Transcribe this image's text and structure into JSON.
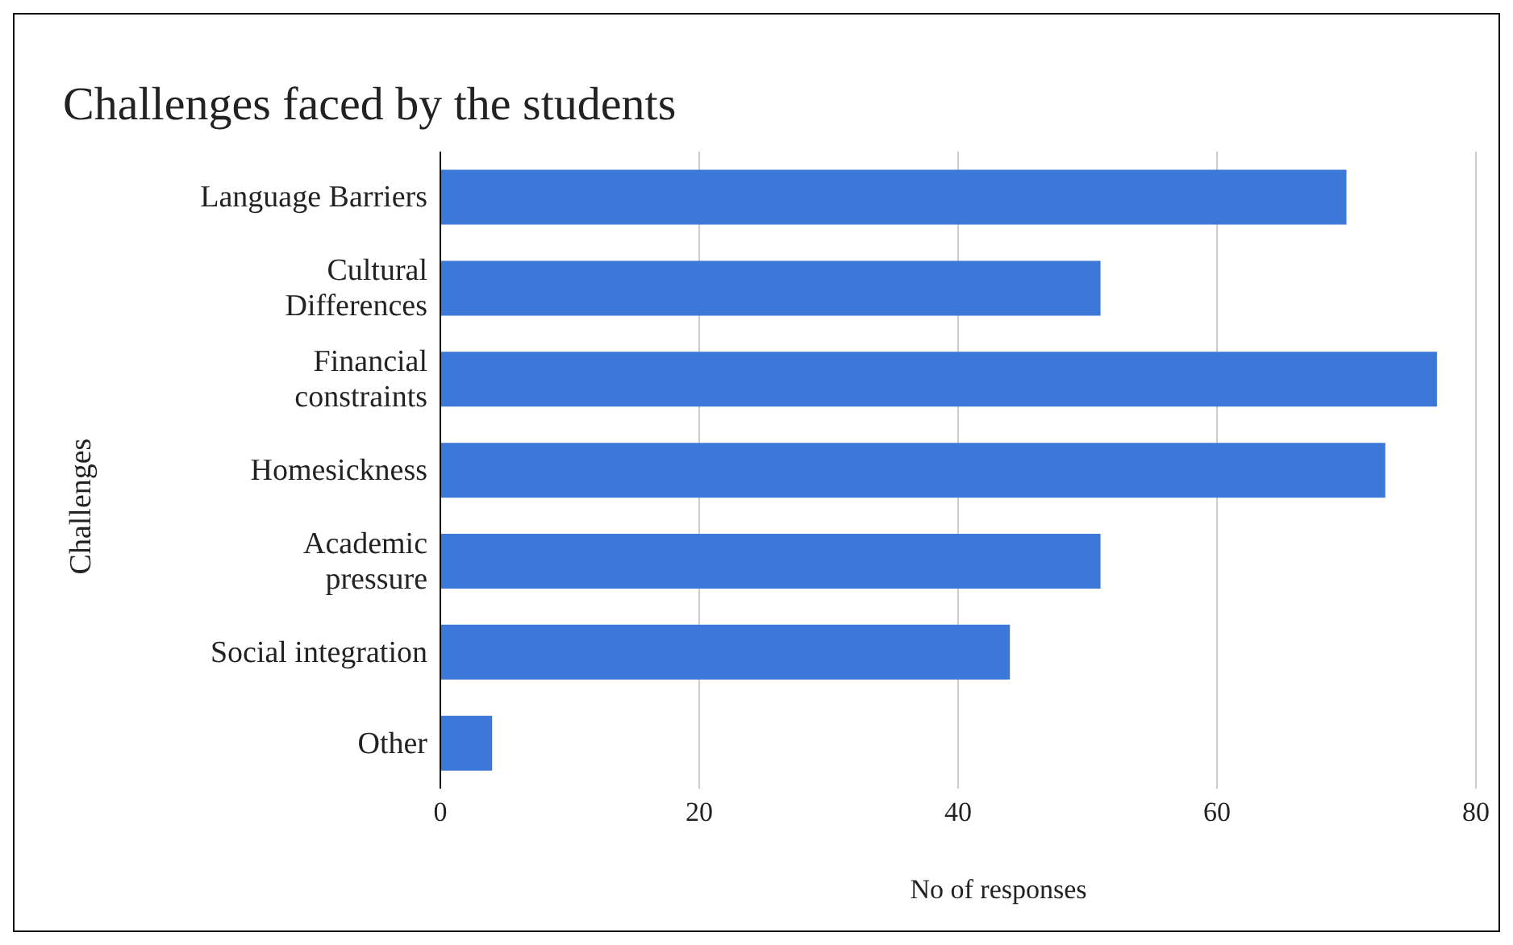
{
  "chart_data": {
    "type": "bar",
    "orientation": "horizontal",
    "title": "Challenges faced by the students",
    "xlabel": "No of responses",
    "ylabel": "Challenges",
    "categories": [
      "Language Barriers",
      "Cultural\nDifferences",
      "Financial\nconstraints",
      "Homesickness",
      "Academic\npressure",
      "Social integration",
      "Other"
    ],
    "values": [
      70,
      51,
      77,
      73,
      51,
      44,
      4
    ],
    "color": "#3c78d8",
    "xlim": [
      0,
      80
    ],
    "xticks": [
      0,
      20,
      40,
      60,
      80
    ],
    "grid": "x",
    "legend": false
  }
}
